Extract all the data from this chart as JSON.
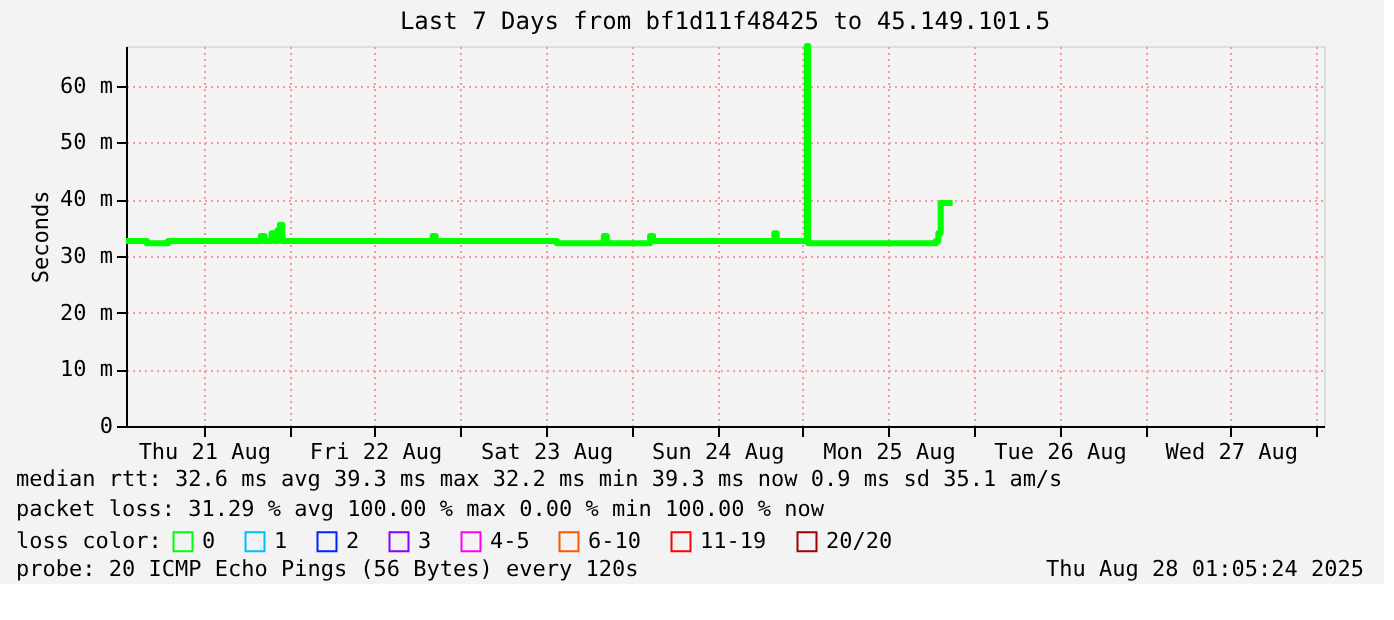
{
  "chart_data": {
    "type": "line",
    "title": "Last 7 Days from bf1d11f48425 to 45.149.101.5",
    "ylabel": "Seconds",
    "legend_title": "loss color:",
    "legend": "bottom",
    "grid": true,
    "x": [
      "2025-08-21T01:05",
      "2025-08-21T04:00",
      "2025-08-21T07:00",
      "2025-08-21T19:30",
      "2025-08-21T20:00",
      "2025-08-21T20:30",
      "2025-08-21T21:30",
      "2025-08-21T22:00",
      "2025-08-21T22:20",
      "2025-08-21T22:40",
      "2025-08-21T23:00",
      "2025-08-22T20:00",
      "2025-08-22T20:05",
      "2025-08-22T20:30",
      "2025-08-23T13:00",
      "2025-08-23T13:30",
      "2025-08-23T20:00",
      "2025-08-23T20:05",
      "2025-08-23T20:30",
      "2025-08-24T02:30",
      "2025-08-24T02:35",
      "2025-08-24T03:00",
      "2025-08-24T19:50",
      "2025-08-24T20:00",
      "2025-08-24T20:20",
      "2025-08-25T00:20",
      "2025-08-25T00:33",
      "2025-08-25T00:45",
      "2025-08-25T12:00",
      "2025-08-25T18:40",
      "2025-08-25T19:00",
      "2025-08-25T19:20",
      "2025-08-25T21:00"
    ],
    "series": [
      {
        "name": "0",
        "color": "#00ff00",
        "values": [
          32.6,
          32.2,
          32.6,
          32.6,
          33.5,
          32.6,
          34,
          32.6,
          34.5,
          35.5,
          32.6,
          32.6,
          33.5,
          32.6,
          32.6,
          32.2,
          32.2,
          33.5,
          32.2,
          32.2,
          33.5,
          32.6,
          32.6,
          34,
          32.6,
          32.6,
          67,
          32.2,
          32.2,
          32.6,
          34,
          39.3,
          39.3
        ]
      },
      {
        "name": "1",
        "color": "#00bbff",
        "values": [
          null,
          null,
          null,
          null,
          null,
          null,
          null,
          null,
          null,
          null,
          null,
          null,
          null,
          null,
          null,
          null,
          null,
          null,
          null,
          null,
          null,
          null,
          null,
          null,
          null,
          null,
          null,
          null,
          null,
          null,
          null,
          null,
          null
        ]
      },
      {
        "name": "2",
        "color": "#0022ff",
        "values": [
          null,
          null,
          null,
          null,
          null,
          null,
          null,
          null,
          null,
          null,
          null,
          null,
          null,
          null,
          null,
          null,
          null,
          null,
          null,
          null,
          null,
          null,
          null,
          null,
          null,
          null,
          null,
          null,
          null,
          null,
          null,
          null,
          null
        ]
      },
      {
        "name": "3",
        "color": "#8800ff",
        "values": [
          null,
          null,
          null,
          null,
          null,
          null,
          null,
          null,
          null,
          null,
          null,
          null,
          null,
          null,
          null,
          null,
          null,
          null,
          null,
          null,
          null,
          null,
          null,
          null,
          null,
          null,
          null,
          null,
          null,
          null,
          null,
          null,
          null
        ]
      },
      {
        "name": "4-5",
        "color": "#ff00ff",
        "values": [
          null,
          null,
          null,
          null,
          null,
          null,
          null,
          null,
          null,
          null,
          null,
          null,
          null,
          null,
          null,
          null,
          null,
          null,
          null,
          null,
          null,
          null,
          null,
          null,
          null,
          null,
          null,
          null,
          null,
          null,
          null,
          null,
          null
        ]
      },
      {
        "name": "6-10",
        "color": "#ff5500",
        "values": [
          null,
          null,
          null,
          null,
          null,
          null,
          null,
          null,
          null,
          null,
          null,
          null,
          null,
          null,
          null,
          null,
          null,
          null,
          null,
          null,
          null,
          null,
          null,
          null,
          null,
          null,
          null,
          null,
          null,
          null,
          null,
          null,
          null
        ]
      },
      {
        "name": "11-19",
        "color": "#ff0000",
        "values": [
          null,
          null,
          null,
          null,
          null,
          null,
          null,
          null,
          null,
          null,
          null,
          null,
          null,
          null,
          null,
          null,
          null,
          null,
          null,
          null,
          null,
          null,
          null,
          null,
          null,
          null,
          null,
          null,
          null,
          null,
          null,
          null,
          null
        ]
      },
      {
        "name": "20/20",
        "color": "#a10000",
        "values": [
          null,
          null,
          null,
          null,
          null,
          null,
          null,
          null,
          null,
          null,
          null,
          null,
          null,
          null,
          null,
          null,
          null,
          null,
          null,
          null,
          null,
          null,
          null,
          null,
          null,
          null,
          null,
          null,
          null,
          null,
          null,
          null,
          null
        ]
      }
    ],
    "xlim": [
      "2025-08-21T01:05",
      "2025-08-28T01:05"
    ],
    "xticks": [
      {
        "value": "2025-08-21T12:00",
        "label": "Thu 21 Aug"
      },
      {
        "value": "2025-08-22T00:00",
        "label": null
      },
      {
        "value": "2025-08-22T12:00",
        "label": "Fri 22 Aug"
      },
      {
        "value": "2025-08-23T00:00",
        "label": null
      },
      {
        "value": "2025-08-23T12:00",
        "label": "Sat 23 Aug"
      },
      {
        "value": "2025-08-24T00:00",
        "label": null
      },
      {
        "value": "2025-08-24T12:00",
        "label": "Sun 24 Aug"
      },
      {
        "value": "2025-08-25T00:00",
        "label": null
      },
      {
        "value": "2025-08-25T12:00",
        "label": "Mon 25 Aug"
      },
      {
        "value": "2025-08-26T00:00",
        "label": null
      },
      {
        "value": "2025-08-26T12:00",
        "label": "Tue 26 Aug"
      },
      {
        "value": "2025-08-27T00:00",
        "label": null
      },
      {
        "value": "2025-08-27T12:00",
        "label": "Wed 27 Aug"
      },
      {
        "value": "2025-08-28T00:00",
        "label": null
      }
    ],
    "ylim": [
      0,
      67
    ],
    "yticks": [
      0,
      {
        "value": 10,
        "label": "10 m"
      },
      {
        "value": 20,
        "label": "20 m"
      },
      {
        "value": 30,
        "label": "30 m"
      },
      {
        "value": 40,
        "label": "40 m"
      },
      {
        "value": 50,
        "label": "50 m"
      },
      {
        "value": 60,
        "label": "60 m"
      }
    ],
    "annotations": [
      "median rtt:  32.6 ms avg  39.3 ms max  32.2 ms min  39.3 ms now  0.9 ms sd  35.1   am/s",
      "packet loss: 31.29 % avg  100.00 % max  0.00 % min  100.00 % now",
      "probe:       20 ICMP Echo Pings (56 Bytes) every 120s",
      "Thu Aug 28 01:05:24 2025"
    ]
  }
}
